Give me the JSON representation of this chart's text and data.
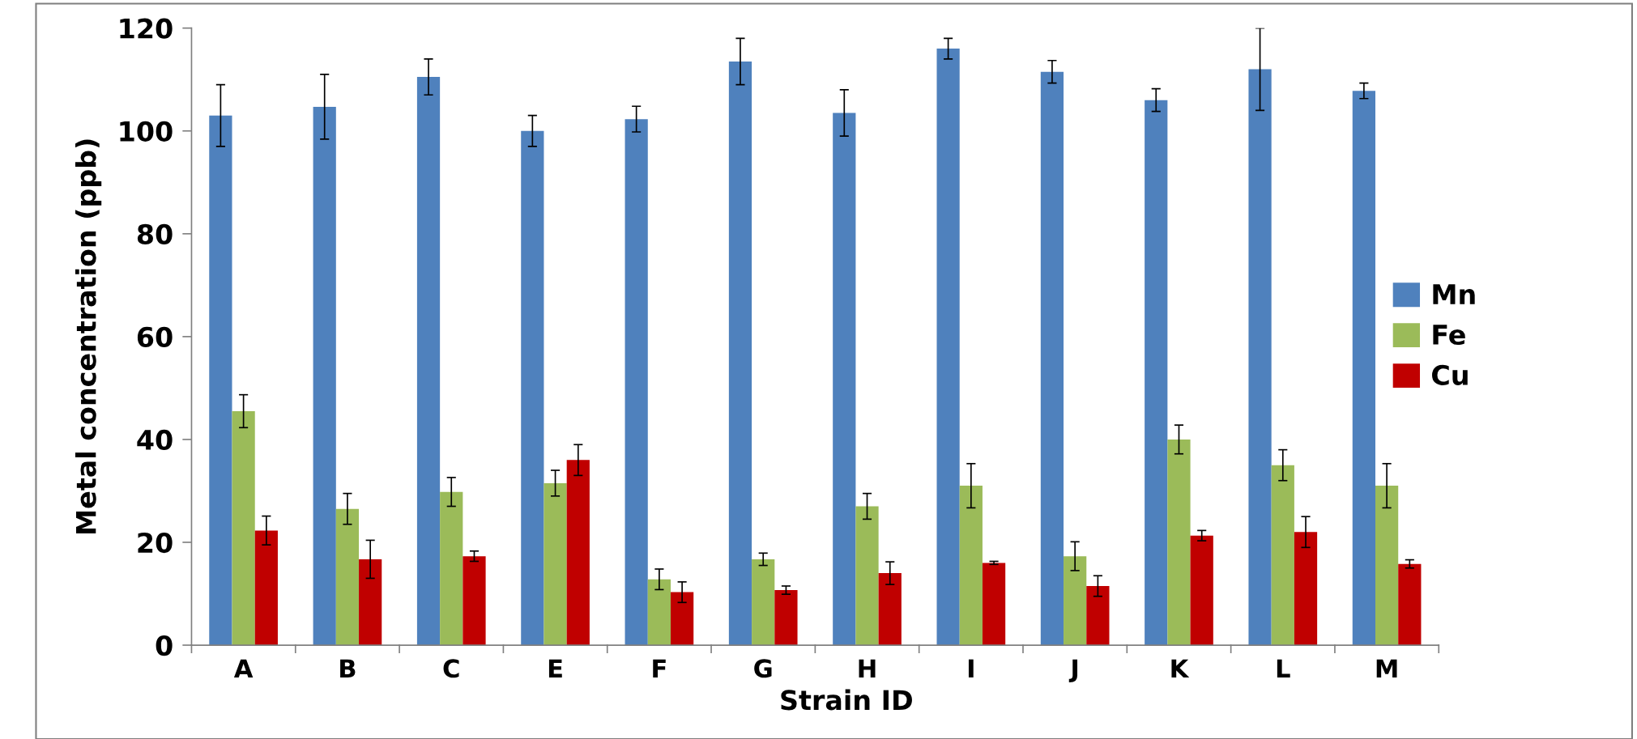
{
  "chart_data": {
    "type": "bar",
    "xlabel": "Strain ID",
    "ylabel": "Metal concentration (ppb)",
    "categories": [
      "A",
      "B",
      "C",
      "E",
      "F",
      "G",
      "H",
      "I",
      "J",
      "K",
      "L",
      "M"
    ],
    "series": [
      {
        "name": "Mn",
        "color": "#4f81bd",
        "values": [
          103,
          104.7,
          110.5,
          100,
          102.3,
          113.5,
          103.5,
          116,
          111.5,
          106,
          112,
          107.8
        ],
        "errors": [
          6,
          6.3,
          3.5,
          3,
          2.5,
          4.5,
          4.5,
          2,
          2.2,
          2.2,
          8,
          1.5
        ]
      },
      {
        "name": "Fe",
        "color": "#9bbb59",
        "values": [
          45.5,
          26.5,
          29.8,
          31.5,
          12.8,
          16.7,
          27,
          31,
          17.3,
          40,
          35,
          31
        ],
        "errors": [
          3.2,
          3,
          2.8,
          2.5,
          2,
          1.2,
          2.5,
          4.3,
          2.8,
          2.8,
          3,
          4.3
        ]
      },
      {
        "name": "Cu",
        "color": "#c00000",
        "values": [
          22.3,
          16.7,
          17.3,
          36,
          10.3,
          10.7,
          14,
          16,
          11.5,
          21.3,
          22,
          15.8
        ],
        "errors": [
          2.8,
          3.7,
          1,
          3,
          2,
          0.8,
          2.2,
          0.3,
          2,
          1,
          3,
          0.8
        ]
      }
    ],
    "ylim": [
      0,
      120
    ],
    "yticks": [
      0,
      20,
      40,
      60,
      80,
      100,
      120
    ],
    "grid": false,
    "legend": "right"
  }
}
